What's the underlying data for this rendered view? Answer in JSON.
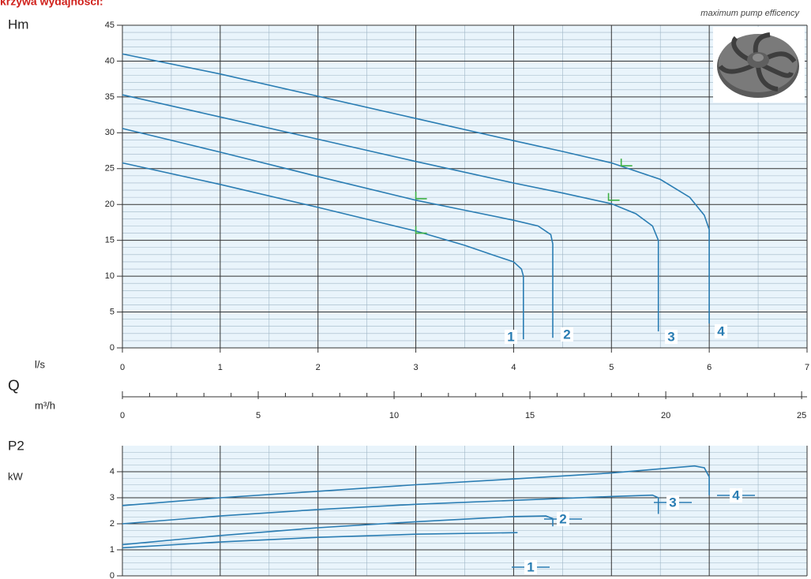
{
  "header": {
    "title": "krzywa wydajności:"
  },
  "chart_data": [
    {
      "type": "line",
      "annotation": "maximum pump efficency",
      "y_label": "Hm",
      "x_label": "Q",
      "x_unit": "l/s",
      "x2_unit": "m³/h",
      "xlim": [
        0,
        7
      ],
      "xticks": [
        0,
        1,
        2,
        3,
        4,
        5,
        6,
        7
      ],
      "x2lim": [
        0,
        25.2
      ],
      "x2ticks": [
        0,
        5,
        10,
        15,
        20,
        25
      ],
      "ylim": [
        0,
        45
      ],
      "yticks": [
        0,
        5,
        10,
        15,
        20,
        25,
        30,
        35,
        40,
        45
      ],
      "grid": true,
      "efficiency_color": "#3cb043",
      "series": [
        {
          "name": "1",
          "color": "#2a7db3",
          "x": [
            0,
            1,
            2,
            3,
            3.5,
            3.8,
            4.0,
            4.08,
            4.1,
            4.1
          ],
          "values": [
            25.8,
            22.8,
            19.6,
            16.3,
            14.3,
            12.9,
            12.0,
            11.0,
            10.0,
            1.2
          ],
          "efficiency_x": 3,
          "efficiency_y": 16
        },
        {
          "name": "2",
          "color": "#2a7db3",
          "x": [
            0,
            1,
            2,
            3,
            3.5,
            4.0,
            4.25,
            4.38,
            4.4,
            4.4
          ],
          "values": [
            30.6,
            27.3,
            23.9,
            20.6,
            19.2,
            17.8,
            17.0,
            15.8,
            14.5,
            1.4
          ],
          "efficiency_x": 3,
          "efficiency_y": 20.8
        },
        {
          "name": "3",
          "color": "#2a7db3",
          "x": [
            0,
            1,
            2,
            3,
            4,
            4.5,
            5,
            5.25,
            5.42,
            5.48,
            5.48
          ],
          "values": [
            35.3,
            32.2,
            29.1,
            26.0,
            23.0,
            21.6,
            20.1,
            18.7,
            17.0,
            15,
            2.3
          ],
          "efficiency_x": 4.97,
          "efficiency_y": 20.6
        },
        {
          "name": "4",
          "color": "#2a7db3",
          "x": [
            0,
            1,
            2,
            3,
            4,
            4.5,
            5,
            5.5,
            5.8,
            5.95,
            6.0,
            6.0
          ],
          "values": [
            41,
            38.2,
            35.1,
            32.0,
            28.9,
            27.4,
            25.8,
            23.5,
            21.0,
            18.5,
            16.5,
            3.4
          ],
          "efficiency_x": 5.1,
          "efficiency_y": 25.4
        }
      ]
    },
    {
      "type": "line",
      "y_label": "P2",
      "y_unit": "kW",
      "xlim": [
        0,
        7
      ],
      "ylim": [
        0,
        5
      ],
      "yticks": [
        0,
        1,
        2,
        3,
        4
      ],
      "grid": true,
      "series": [
        {
          "name": "1",
          "color": "#2a7db3",
          "x": [
            0,
            1,
            2,
            3,
            4.04
          ],
          "values": [
            1.08,
            1.3,
            1.48,
            1.6,
            1.66
          ]
        },
        {
          "name": "2",
          "color": "#2a7db3",
          "x": [
            0,
            1,
            2,
            3,
            4,
            4.33,
            4.4,
            4.4
          ],
          "values": [
            1.2,
            1.55,
            1.85,
            2.08,
            2.28,
            2.3,
            2.2,
            1.9
          ]
        },
        {
          "name": "3",
          "color": "#2a7db3",
          "x": [
            0,
            1,
            2,
            3,
            4,
            5,
            5.42,
            5.48,
            5.48
          ],
          "values": [
            2.0,
            2.3,
            2.55,
            2.75,
            2.9,
            3.05,
            3.1,
            3.0,
            2.38
          ]
        },
        {
          "name": "4",
          "color": "#2a7db3",
          "x": [
            0,
            1,
            2,
            3,
            4,
            5,
            5.85,
            5.95,
            6.0,
            6.0
          ],
          "values": [
            2.7,
            3.0,
            3.25,
            3.5,
            3.72,
            3.95,
            4.22,
            4.15,
            3.8,
            3.1
          ]
        }
      ]
    }
  ]
}
